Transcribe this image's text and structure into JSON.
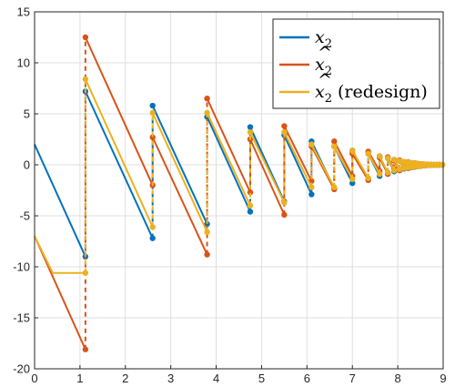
{
  "chart_data": {
    "type": "line",
    "title": "",
    "xlabel": "",
    "ylabel": "",
    "xlim": [
      0,
      9
    ],
    "ylim": [
      -20,
      15
    ],
    "xticks": [
      "0",
      "1",
      "2",
      "3",
      "4",
      "5",
      "6",
      "7",
      "8",
      "9"
    ],
    "yticks": [
      "15",
      "10",
      "5",
      "0",
      "-5",
      "-10",
      "-15",
      "-20"
    ],
    "grid": true,
    "legend_position": "top-right",
    "colors": {
      "x2": "#0072BD",
      "x2hat": "#D95319",
      "x2redesign": "#EDB120",
      "grid": "#dfdfdf",
      "axis": "#262626"
    },
    "jump_times": [
      1.12,
      2.6,
      3.8,
      4.75,
      5.5,
      6.1,
      6.6,
      7.0,
      7.35,
      7.6,
      7.78,
      7.92,
      8.04,
      8.14,
      8.23,
      8.31,
      8.38,
      8.44,
      8.5,
      8.56,
      8.62,
      8.68,
      8.74,
      8.8,
      8.86,
      8.92
    ],
    "series": [
      {
        "name": "x_2",
        "segments": [
          {
            "x": [
              0,
              1.12
            ],
            "y": [
              2,
              -9.0
            ]
          },
          {
            "x": [
              1.12,
              2.6
            ],
            "y": [
              7.2,
              -7.2
            ]
          },
          {
            "x": [
              2.6,
              3.8
            ],
            "y": [
              5.8,
              -5.8
            ]
          },
          {
            "x": [
              3.8,
              4.75
            ],
            "y": [
              4.7,
              -4.6
            ]
          },
          {
            "x": [
              4.75,
              5.5
            ],
            "y": [
              3.7,
              -3.6
            ]
          },
          {
            "x": [
              5.5,
              6.1
            ],
            "y": [
              2.9,
              -2.9
            ]
          },
          {
            "x": [
              6.1,
              6.6
            ],
            "y": [
              2.3,
              -2.3
            ]
          },
          {
            "x": [
              6.6,
              7.0
            ],
            "y": [
              1.8,
              -1.8
            ]
          },
          {
            "x": [
              7.0,
              7.35
            ],
            "y": [
              1.4,
              -1.4
            ]
          },
          {
            "x": [
              7.35,
              7.6
            ],
            "y": [
              1.1,
              -1.1
            ]
          },
          {
            "x": [
              7.6,
              7.78
            ],
            "y": [
              0.85,
              -0.85
            ]
          },
          {
            "x": [
              7.78,
              7.92
            ],
            "y": [
              0.65,
              -0.65
            ]
          },
          {
            "x": [
              7.92,
              8.04
            ],
            "y": [
              0.5,
              -0.5
            ]
          },
          {
            "x": [
              8.04,
              8.14
            ],
            "y": [
              0.38,
              -0.38
            ]
          },
          {
            "x": [
              8.14,
              8.23
            ],
            "y": [
              0.3,
              -0.3
            ]
          },
          {
            "x": [
              8.23,
              8.31
            ],
            "y": [
              0.24,
              -0.24
            ]
          },
          {
            "x": [
              8.31,
              8.38
            ],
            "y": [
              0.18,
              -0.18
            ]
          },
          {
            "x": [
              8.38,
              8.44
            ],
            "y": [
              0.14,
              -0.14
            ]
          },
          {
            "x": [
              8.44,
              8.5
            ],
            "y": [
              0.1,
              -0.1
            ]
          },
          {
            "x": [
              8.5,
              8.56
            ],
            "y": [
              0.07,
              -0.07
            ]
          },
          {
            "x": [
              8.56,
              8.62
            ],
            "y": [
              0.05,
              -0.05
            ]
          },
          {
            "x": [
              8.62,
              8.68
            ],
            "y": [
              0.03,
              -0.03
            ]
          },
          {
            "x": [
              8.68,
              8.74
            ],
            "y": [
              0.02,
              -0.02
            ]
          },
          {
            "x": [
              8.74,
              8.8
            ],
            "y": [
              0.01,
              -0.01
            ]
          },
          {
            "x": [
              8.8,
              8.86
            ],
            "y": [
              0.01,
              -0.01
            ]
          },
          {
            "x": [
              8.86,
              8.92
            ],
            "y": [
              0.0,
              0.0
            ]
          },
          {
            "x": [
              8.92,
              8.98
            ],
            "y": [
              0.0,
              0.0
            ]
          }
        ]
      },
      {
        "name": "x̂_2",
        "segments": [
          {
            "x": [
              0,
              1.12
            ],
            "y": [
              -7,
              -18.1
            ]
          },
          {
            "x": [
              1.12,
              2.6
            ],
            "y": [
              12.5,
              -2.0
            ]
          },
          {
            "x": [
              2.6,
              3.8
            ],
            "y": [
              2.7,
              -8.8
            ]
          },
          {
            "x": [
              3.8,
              4.75
            ],
            "y": [
              6.5,
              -2.7
            ]
          },
          {
            "x": [
              4.75,
              5.5
            ],
            "y": [
              2.5,
              -4.9
            ]
          },
          {
            "x": [
              5.5,
              6.1
            ],
            "y": [
              3.8,
              -1.6
            ]
          },
          {
            "x": [
              6.1,
              6.6
            ],
            "y": [
              1.8,
              -2.4
            ]
          },
          {
            "x": [
              6.6,
              7.0
            ],
            "y": [
              2.3,
              -1.1
            ]
          },
          {
            "x": [
              7.0,
              7.35
            ],
            "y": [
              1.1,
              -1.5
            ]
          },
          {
            "x": [
              7.35,
              7.6
            ],
            "y": [
              1.3,
              -0.6
            ]
          },
          {
            "x": [
              7.6,
              7.78
            ],
            "y": [
              0.7,
              -0.9
            ]
          },
          {
            "x": [
              7.78,
              7.92
            ],
            "y": [
              0.75,
              -0.4
            ]
          },
          {
            "x": [
              7.92,
              8.04
            ],
            "y": [
              0.4,
              -0.55
            ]
          },
          {
            "x": [
              8.04,
              8.14
            ],
            "y": [
              0.45,
              -0.25
            ]
          },
          {
            "x": [
              8.14,
              8.23
            ],
            "y": [
              0.25,
              -0.33
            ]
          },
          {
            "x": [
              8.23,
              8.31
            ],
            "y": [
              0.27,
              -0.15
            ]
          },
          {
            "x": [
              8.31,
              8.38
            ],
            "y": [
              0.15,
              -0.2
            ]
          },
          {
            "x": [
              8.38,
              8.44
            ],
            "y": [
              0.16,
              -0.09
            ]
          },
          {
            "x": [
              8.44,
              8.5
            ],
            "y": [
              0.09,
              -0.12
            ]
          },
          {
            "x": [
              8.5,
              8.56
            ],
            "y": [
              0.08,
              -0.05
            ]
          },
          {
            "x": [
              8.56,
              8.62
            ],
            "y": [
              0.05,
              -0.06
            ]
          },
          {
            "x": [
              8.62,
              8.68
            ],
            "y": [
              0.04,
              -0.03
            ]
          },
          {
            "x": [
              8.68,
              8.74
            ],
            "y": [
              0.02,
              -0.03
            ]
          },
          {
            "x": [
              8.74,
              8.8
            ],
            "y": [
              0.02,
              -0.01
            ]
          },
          {
            "x": [
              8.8,
              8.86
            ],
            "y": [
              0.01,
              -0.01
            ]
          },
          {
            "x": [
              8.86,
              8.92
            ],
            "y": [
              0.0,
              0.0
            ]
          },
          {
            "x": [
              8.92,
              8.98
            ],
            "y": [
              0.0,
              0.0
            ]
          }
        ]
      },
      {
        "name": "x̂_2 (redesign)",
        "segments": [
          {
            "x": [
              0,
              0.4,
              1.12
            ],
            "y": [
              -7,
              -10.6,
              -10.6
            ]
          },
          {
            "x": [
              1.12,
              2.6
            ],
            "y": [
              8.4,
              -6.1
            ]
          },
          {
            "x": [
              2.6,
              3.8
            ],
            "y": [
              5.1,
              -6.6
            ]
          },
          {
            "x": [
              3.8,
              4.75
            ],
            "y": [
              5.1,
              -4.0
            ]
          },
          {
            "x": [
              4.75,
              5.5
            ],
            "y": [
              3.2,
              -3.7
            ]
          },
          {
            "x": [
              5.5,
              6.1
            ],
            "y": [
              3.2,
              -2.2
            ]
          },
          {
            "x": [
              6.1,
              6.6
            ],
            "y": [
              2.0,
              -2.2
            ]
          },
          {
            "x": [
              6.6,
              7.0
            ],
            "y": [
              1.8,
              -1.4
            ]
          },
          {
            "x": [
              7.0,
              7.35
            ],
            "y": [
              1.4,
              -1.3
            ]
          },
          {
            "x": [
              7.35,
              7.6
            ],
            "y": [
              1.1,
              -0.9
            ]
          },
          {
            "x": [
              7.6,
              7.78
            ],
            "y": [
              0.85,
              -0.75
            ]
          },
          {
            "x": [
              7.78,
              7.92
            ],
            "y": [
              0.65,
              -0.55
            ]
          },
          {
            "x": [
              7.92,
              8.04
            ],
            "y": [
              0.5,
              -0.42
            ]
          },
          {
            "x": [
              8.04,
              8.14
            ],
            "y": [
              0.38,
              -0.32
            ]
          },
          {
            "x": [
              8.14,
              8.23
            ],
            "y": [
              0.3,
              -0.25
            ]
          },
          {
            "x": [
              8.23,
              8.31
            ],
            "y": [
              0.24,
              -0.2
            ]
          },
          {
            "x": [
              8.31,
              8.38
            ],
            "y": [
              0.18,
              -0.15
            ]
          },
          {
            "x": [
              8.38,
              8.44
            ],
            "y": [
              0.14,
              -0.12
            ]
          },
          {
            "x": [
              8.44,
              8.5
            ],
            "y": [
              0.1,
              -0.08
            ]
          },
          {
            "x": [
              8.5,
              8.56
            ],
            "y": [
              0.07,
              -0.06
            ]
          },
          {
            "x": [
              8.56,
              8.62
            ],
            "y": [
              0.05,
              -0.04
            ]
          },
          {
            "x": [
              8.62,
              8.68
            ],
            "y": [
              0.03,
              -0.03
            ]
          },
          {
            "x": [
              8.68,
              8.74
            ],
            "y": [
              0.02,
              -0.02
            ]
          },
          {
            "x": [
              8.74,
              8.8
            ],
            "y": [
              0.01,
              -0.01
            ]
          },
          {
            "x": [
              8.8,
              8.86
            ],
            "y": [
              0.01,
              -0.01
            ]
          },
          {
            "x": [
              8.86,
              8.92
            ],
            "y": [
              0.0,
              0.0
            ]
          },
          {
            "x": [
              8.92,
              8.98
            ],
            "y": [
              0.0,
              0.0
            ]
          }
        ]
      }
    ],
    "legend": [
      {
        "key": "x2",
        "base": "x",
        "sub": "2",
        "hat": false,
        "suffix": ""
      },
      {
        "key": "x2hat",
        "base": "x",
        "sub": "2",
        "hat": true,
        "suffix": ""
      },
      {
        "key": "x2redesign",
        "base": "x",
        "sub": "2",
        "hat": true,
        "suffix": "(redesign)"
      }
    ]
  }
}
